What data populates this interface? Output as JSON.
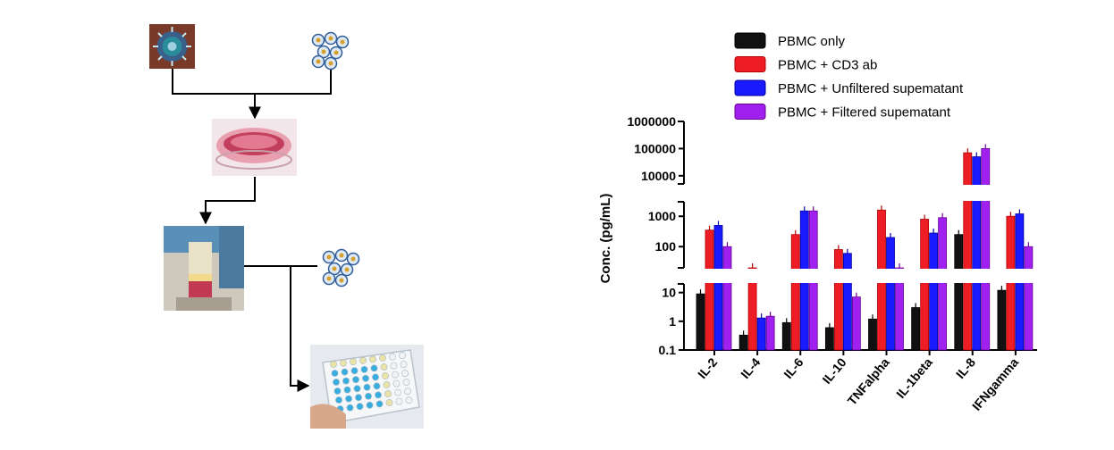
{
  "colors": {
    "series": [
      "#111111",
      "#ee1c24",
      "#1a1aff",
      "#a020f0"
    ],
    "bar_edge": [
      "#000000",
      "#b00000",
      "#0000a0",
      "#6a0090"
    ],
    "virus": "#3a5f8a",
    "cell_fill": "#dfe9f5",
    "cell_nucleus": "#d6a12a",
    "cell_stroke": "#2e5c9a",
    "dish_pink": "#e8a0b0",
    "tube_blue": "#5a90b8",
    "plate_cyan": "#38aee0"
  },
  "workflow": {
    "icons": [
      "virus-icon",
      "pbmc-cells-icon",
      "culture-dish-icon",
      "centrifuge-tube-icon",
      "pbmc-cells-icon",
      "elisa-plate-icon"
    ]
  },
  "chart_data": {
    "type": "bar",
    "categories": [
      "IL-2",
      "IL-4",
      "IL-6",
      "IL-10",
      "TNFalpha",
      "IL-1beta",
      "IL-8",
      "IFNgamma"
    ],
    "series": [
      {
        "name": "PBMC only",
        "values": [
          9,
          0.33,
          0.9,
          0.6,
          1.2,
          3,
          250,
          12
        ]
      },
      {
        "name": "PBMC + CD3 ab",
        "values": [
          350,
          20,
          250,
          80,
          1600,
          800,
          70000,
          1000
        ]
      },
      {
        "name": "PBMC + Unfiltered supematant",
        "values": [
          500,
          1.3,
          1500,
          60,
          200,
          280,
          50000,
          1200
        ]
      },
      {
        "name": "PBMC + Filtered supematant",
        "values": [
          100,
          1.5,
          1500,
          7,
          20,
          900,
          100000,
          100
        ]
      }
    ],
    "yscale": "log",
    "ylabel": "Conc. (pg/mL)",
    "y_segments": [
      {
        "range": [
          0.1,
          20
        ],
        "ticks": [
          "0.1",
          "1",
          "10"
        ]
      },
      {
        "range": [
          20,
          3000
        ],
        "ticks": [
          "100",
          "1000"
        ]
      },
      {
        "range": [
          5000,
          1000000
        ],
        "ticks": [
          "10000",
          "100000",
          "1000000"
        ]
      }
    ],
    "legend_position": "top-right",
    "grid": false
  }
}
